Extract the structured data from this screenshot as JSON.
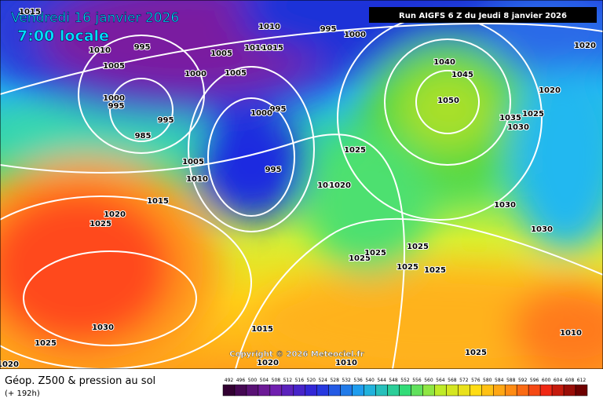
{
  "header": {
    "date": "Vendredi 16 janvier 2026",
    "time": "7:00 locale",
    "run": "Run AIGFS 6 Z du Jeudi 8 janvier 2026"
  },
  "isobar_labels": [
    1015,
    1010,
    995,
    1000,
    1010,
    995,
    1005,
    1010,
    1015,
    1005,
    1000,
    1005,
    1040,
    1045,
    1020,
    1020,
    1050,
    1000,
    995,
    995,
    1000,
    995,
    1035,
    1025,
    1030,
    985,
    1025,
    1005,
    995,
    1010,
    1010,
    1020,
    1015,
    1030,
    1020,
    1025,
    1030,
    1025,
    1025,
    1025,
    1025,
    1025,
    1030,
    1015,
    1025,
    1010,
    1025,
    1020,
    1010,
    1020
  ],
  "copyright": "Copyright © 2026 Meteociel.fr",
  "footer": {
    "title": "Géop. Z500 & pression au sol",
    "lead": "(+ 192h)"
  },
  "legend": {
    "ticks": [
      492,
      496,
      500,
      504,
      508,
      512,
      516,
      520,
      524,
      528,
      532,
      536,
      540,
      544,
      548,
      552,
      556,
      560,
      564,
      568,
      572,
      576,
      580,
      584,
      588,
      592,
      596,
      600,
      604,
      608,
      612
    ]
  }
}
